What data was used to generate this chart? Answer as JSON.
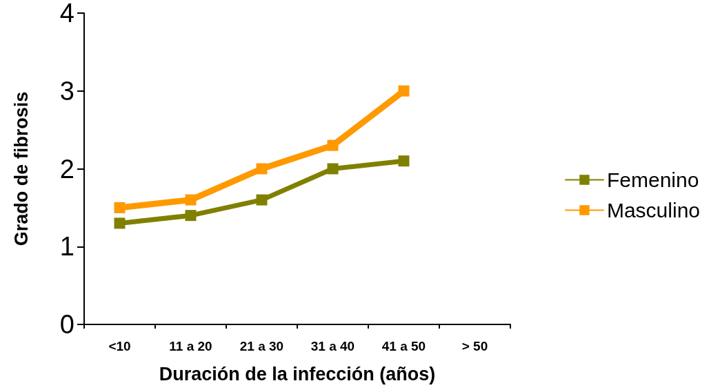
{
  "chart_data": {
    "type": "line",
    "xlabel": "Duración de la infección (años)",
    "ylabel": "Grado de fibrosis",
    "categories": [
      "<10",
      "11 a 20",
      "21 a 30",
      "31 a 40",
      "41 a 50",
      "> 50"
    ],
    "series": [
      {
        "name": "Femenino",
        "color": "#808000",
        "values": [
          1.3,
          1.4,
          1.6,
          2.0,
          2.1,
          null
        ]
      },
      {
        "name": "Masculino",
        "color": "#ff9900",
        "values": [
          1.5,
          1.6,
          2.0,
          2.3,
          3.0,
          null
        ]
      }
    ],
    "ylim": [
      0,
      4
    ],
    "yticks": [
      0,
      1,
      2,
      3,
      4
    ],
    "grid": false,
    "legend": "right",
    "marker": "square",
    "line_style": "solid"
  }
}
